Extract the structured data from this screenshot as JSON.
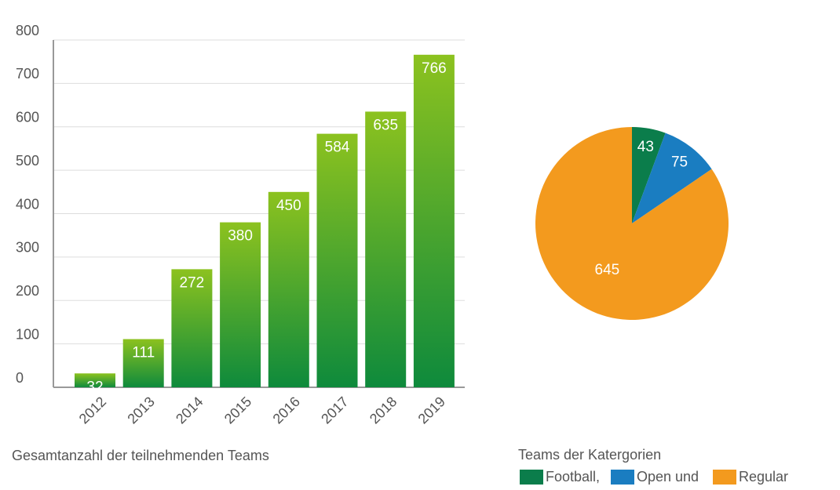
{
  "chart_data": [
    {
      "type": "bar",
      "title": "Gesamtanzahl der teilnehmenden Teams",
      "categories": [
        "2012",
        "2013",
        "2014",
        "2015",
        "2016",
        "2017",
        "2018",
        "2019"
      ],
      "values": [
        32,
        111,
        272,
        380,
        450,
        584,
        635,
        766
      ],
      "color": "#0e8a3c",
      "ylim": [
        0,
        800
      ],
      "yticks": [
        0,
        100,
        200,
        300,
        400,
        500,
        600,
        700,
        800
      ],
      "grid": true
    },
    {
      "type": "pie",
      "title": "Teams der Katergorien",
      "categories": [
        "Football,",
        "Open und",
        "Regular"
      ],
      "values": [
        43,
        75,
        645
      ],
      "colors": [
        "#0b7d4b",
        "#1a7dc1",
        "#f39a1e"
      ]
    }
  ]
}
